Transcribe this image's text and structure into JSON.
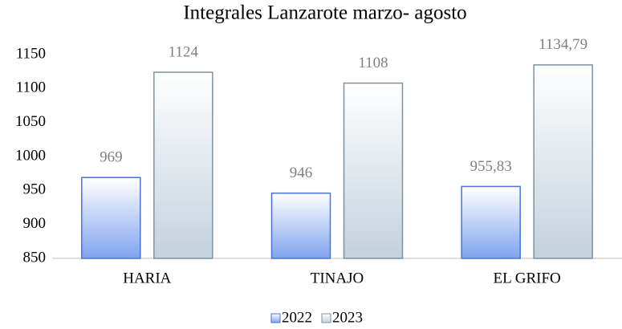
{
  "chart_data": {
    "type": "bar",
    "title": "Integrales Lanzarote marzo- agosto",
    "categories": [
      "HARIA",
      "TINAJO",
      "EL GRIFO"
    ],
    "series": [
      {
        "name": "2022",
        "color": "#7fa3ef",
        "values": [
          969,
          946,
          955.83
        ],
        "value_labels": [
          "969",
          "946",
          "955,83"
        ]
      },
      {
        "name": "2023",
        "color": "#c3d1dc",
        "values": [
          1124,
          1108,
          1134.79
        ],
        "value_labels": [
          "1124",
          "1108",
          "1134,79"
        ]
      }
    ],
    "ylim": [
      850,
      1150
    ],
    "yticks": [
      850,
      900,
      950,
      1000,
      1050,
      1100,
      1150
    ],
    "grid": false,
    "legend": "bottom"
  }
}
